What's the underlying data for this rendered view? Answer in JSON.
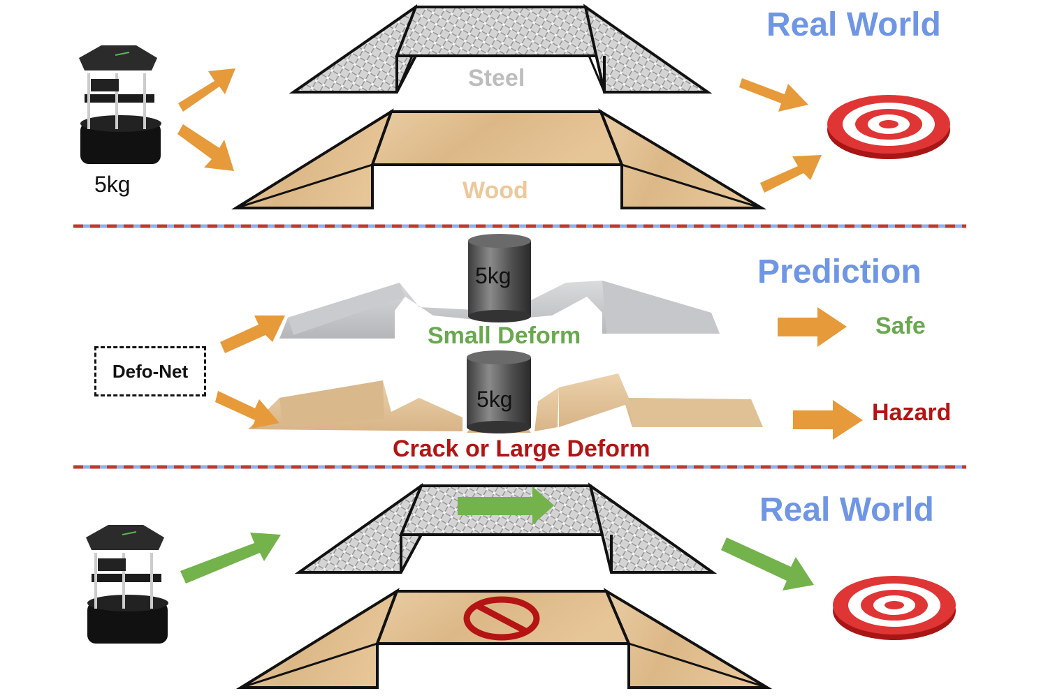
{
  "sections": {
    "top_title": "Real World",
    "middle_title": "Prediction",
    "bottom_title": "Real World"
  },
  "robot": {
    "mass_label": "5kg"
  },
  "bridges": {
    "steel_label": "Steel",
    "wood_label": "Wood"
  },
  "prediction": {
    "model_label": "Defo-Net",
    "weight_label_top": "5kg",
    "weight_label_bottom": "5kg",
    "steel_outcome": "Small Deform",
    "wood_outcome": "Crack or Large Deform",
    "steel_verdict": "Safe",
    "wood_verdict": "Hazard"
  },
  "colors": {
    "title_blue": "#6f96e4",
    "arrow_orange": "#e69a3a",
    "arrow_green": "#74b24c",
    "safe_green": "#6aa84f",
    "hazard_red": "#b41414",
    "steel_gray": "#bdbdbd",
    "wood_tan": "#e8c89e",
    "divider_red": "#c0392b",
    "divider_blue": "#8fb0ee"
  },
  "icons": {
    "robot": "robot-icon",
    "target": "target-icon",
    "weight": "cylinder-weight-icon",
    "forbidden": "no-entry-icon"
  }
}
